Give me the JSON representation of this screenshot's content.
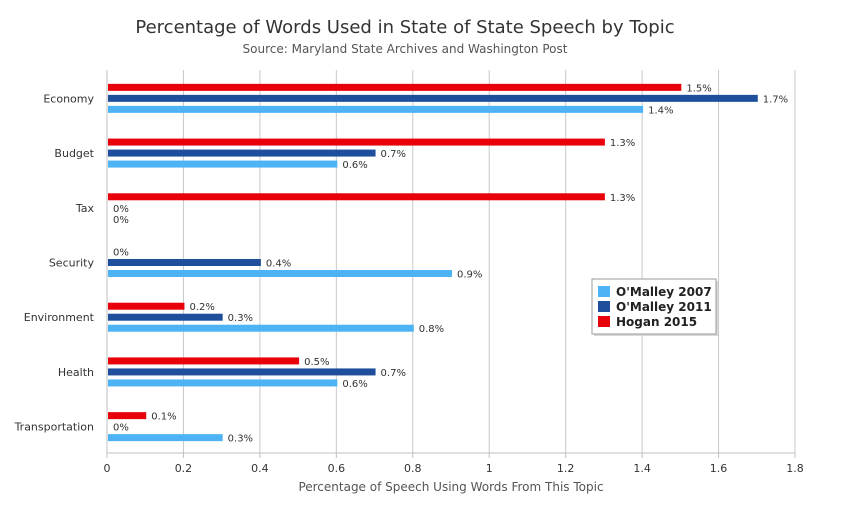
{
  "chart_data": {
    "type": "bar",
    "orientation": "horizontal",
    "title": "Percentage of Words Used in State of State Speech by Topic",
    "subtitle": "Source: Maryland State Archives and Washington Post",
    "xlabel": "Percentage of Speech Using Words From This Topic",
    "ylabel": "",
    "xlim": [
      0,
      1.8
    ],
    "ticks": [
      0,
      0.2,
      0.4,
      0.6,
      0.8,
      1,
      1.2,
      1.4,
      1.6,
      1.8
    ],
    "tick_labels": [
      "0",
      "0.2",
      "0.4",
      "0.6",
      "0.8",
      "1",
      "1.2",
      "1.4",
      "1.6",
      "1.8"
    ],
    "grid": true,
    "legend_position": "right",
    "categories": [
      "Economy",
      "Budget",
      "Tax",
      "Security",
      "Environment",
      "Health",
      "Transportation"
    ],
    "series": [
      {
        "name": "Hogan 2015",
        "color": "#e8000b",
        "values": [
          1.5,
          1.3,
          1.3,
          0,
          0.2,
          0.5,
          0.1
        ],
        "labels": [
          "1.5%",
          "1.3%",
          "1.3%",
          "0%",
          "0.2%",
          "0.5%",
          "0.1%"
        ]
      },
      {
        "name": "O'Malley 2011",
        "color": "#1f4f9c",
        "values": [
          1.7,
          0.7,
          0,
          0.4,
          0.3,
          0.7,
          0
        ],
        "labels": [
          "1.7%",
          "0.7%",
          "0%",
          "0.4%",
          "0.3%",
          "0.7%",
          "0%"
        ]
      },
      {
        "name": "O'Malley 2007",
        "color": "#4db3f5",
        "values": [
          1.4,
          0.6,
          0,
          0.9,
          0.8,
          0.6,
          0.3
        ],
        "labels": [
          "1.4%",
          "0.6%",
          "0%",
          "0.9%",
          "0.8%",
          "0.6%",
          "0.3%"
        ]
      }
    ],
    "legend": [
      "O'Malley 2007",
      "O'Malley 2011",
      "Hogan 2015"
    ]
  }
}
